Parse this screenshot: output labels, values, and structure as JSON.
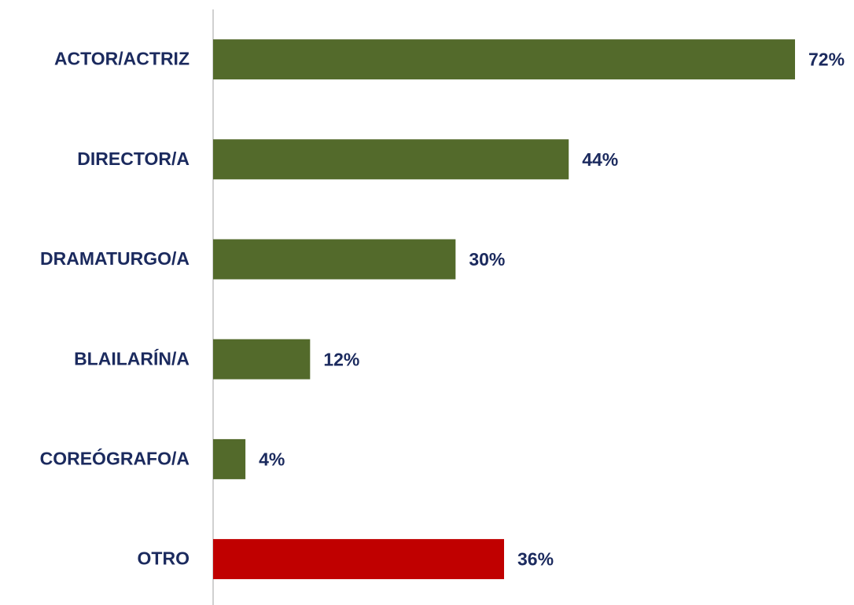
{
  "chart_data": {
    "type": "bar",
    "orientation": "horizontal",
    "categories": [
      "ACTOR/ACTRIZ",
      "DIRECTOR/A",
      "DRAMATURGO/A",
      "BLAILARÍN/A",
      "COREÓGRAFO/A",
      "OTRO"
    ],
    "values": [
      72,
      44,
      30,
      12,
      4,
      36
    ],
    "value_labels": [
      "72%",
      "44%",
      "30%",
      "12%",
      "4%",
      "36%"
    ],
    "colors": [
      "#536a2b",
      "#536a2b",
      "#536a2b",
      "#536a2b",
      "#536a2b",
      "#c00000"
    ],
    "xlim": [
      0,
      72
    ],
    "grid": false
  }
}
